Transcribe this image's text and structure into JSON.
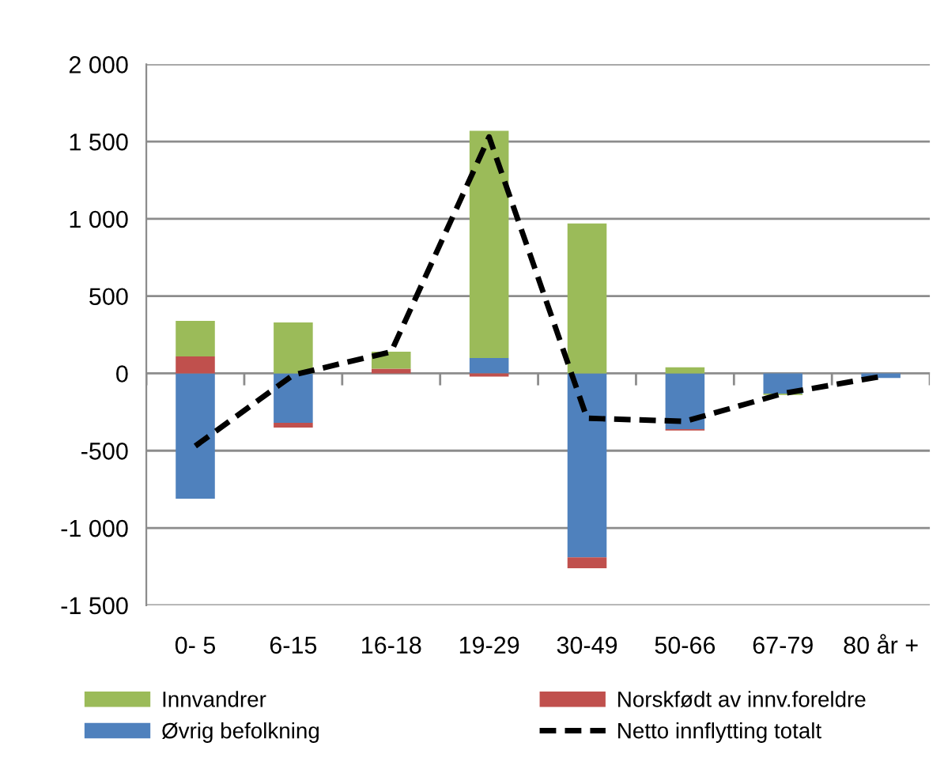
{
  "chart_data": {
    "type": "bar",
    "stacked": true,
    "categories": [
      "0- 5",
      "6-15",
      "16-18",
      "19-29",
      "30-49",
      "50-66",
      "67-79",
      "80 år +"
    ],
    "series": [
      {
        "name": "Øvrig befolkning",
        "color": "#4f81bd",
        "values": [
          -810,
          -320,
          0,
          100,
          -1190,
          -360,
          -130,
          -30
        ]
      },
      {
        "name": "Norskfødt av innv.foreldre",
        "color": "#c0504d",
        "values": [
          110,
          -30,
          30,
          -20,
          -70,
          -10,
          0,
          0
        ]
      },
      {
        "name": "Innvandrer",
        "color": "#9bbb59",
        "values": [
          230,
          330,
          110,
          1470,
          970,
          40,
          -10,
          0
        ]
      },
      {
        "name": "Netto innflytting totalt",
        "type": "line",
        "color": "#000000",
        "line_style": "dashed",
        "marker": "none",
        "values": [
          -470,
          -10,
          140,
          1530,
          -290,
          -310,
          -130,
          -20
        ]
      }
    ],
    "ylim": [
      -1500,
      2000
    ],
    "yticks": [
      {
        "value": -1500,
        "label": "-1 500"
      },
      {
        "value": -1000,
        "label": "-1 000"
      },
      {
        "value": -500,
        "label": "-500"
      },
      0,
      500,
      {
        "value": 1000,
        "label": "1 000"
      },
      {
        "value": 1500,
        "label": "1 500"
      },
      {
        "value": 2000,
        "label": "2 000"
      }
    ],
    "grid": "y",
    "legend": "bottom"
  }
}
